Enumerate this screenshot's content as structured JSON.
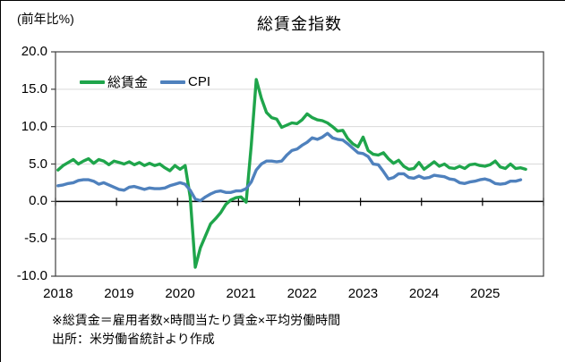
{
  "footnotes": {
    "definition": "※総賃金＝雇用者数×時間当たり賃金×平均労働時間",
    "source": "出所：米労働省統計より作成"
  },
  "chart_data": {
    "type": "line",
    "title": "総賃金指数",
    "y_axis_unit": "(前年比%)",
    "xlabel": "",
    "ylabel": "前年比%",
    "ylim": [
      -10,
      20
    ],
    "grid": true,
    "legend_position": "top-left-inside",
    "y_tick_labels": [
      "20.0",
      "15.0",
      "10.0",
      "5.0",
      "0.0",
      "-5.0",
      "-10.0"
    ],
    "x_tick_labels": [
      "2018",
      "2019",
      "2020",
      "2021",
      "2022",
      "2023",
      "2024",
      "2025"
    ],
    "x_frequency": "monthly",
    "x_slots": 96,
    "axis_color": "#404040",
    "grid_color": "#d9d9d9",
    "zero_line_color": "#000000",
    "series": [
      {
        "name": "総賃金",
        "color": "#1fa54b",
        "start": "2018-01",
        "values": [
          4.2,
          4.8,
          5.2,
          5.6,
          5.0,
          5.4,
          5.7,
          5.1,
          5.6,
          5.4,
          4.9,
          5.4,
          5.2,
          5.0,
          5.3,
          4.9,
          5.2,
          4.8,
          5.1,
          4.8,
          5.0,
          4.5,
          4.1,
          4.8,
          4.3,
          4.8,
          0.6,
          -8.8,
          -6.2,
          -4.6,
          -3.0,
          -2.3,
          -1.5,
          -0.4,
          0.2,
          0.5,
          0.6,
          -0.1,
          7.5,
          16.3,
          13.8,
          11.9,
          11.2,
          11.0,
          9.9,
          10.2,
          10.5,
          10.4,
          10.9,
          11.7,
          11.2,
          10.9,
          10.8,
          10.5,
          10.0,
          9.4,
          9.5,
          8.4,
          7.7,
          7.3,
          8.6,
          6.8,
          6.3,
          6.2,
          6.5,
          5.7,
          5.1,
          5.5,
          4.7,
          4.3,
          4.4,
          5.2,
          4.3,
          4.8,
          5.3,
          4.7,
          5.0,
          4.5,
          4.4,
          4.7,
          4.4,
          4.9,
          5.0,
          4.8,
          4.7,
          4.9,
          5.4,
          4.6,
          4.4,
          5.0,
          4.4,
          4.5,
          4.3
        ]
      },
      {
        "name": "CPI",
        "color": "#4f81bd",
        "start": "2018-01",
        "values": [
          2.1,
          2.2,
          2.4,
          2.5,
          2.8,
          2.9,
          2.9,
          2.7,
          2.3,
          2.5,
          2.2,
          1.9,
          1.6,
          1.5,
          1.9,
          2.0,
          1.8,
          1.6,
          1.8,
          1.7,
          1.7,
          1.8,
          2.1,
          2.3,
          2.5,
          2.3,
          1.5,
          0.3,
          0.1,
          0.6,
          1.0,
          1.3,
          1.4,
          1.2,
          1.2,
          1.4,
          1.4,
          1.7,
          2.6,
          4.2,
          5.0,
          5.4,
          5.4,
          5.3,
          5.4,
          6.2,
          6.8,
          7.0,
          7.5,
          7.9,
          8.5,
          8.3,
          8.6,
          9.1,
          8.5,
          8.3,
          8.2,
          7.7,
          7.1,
          6.5,
          6.4,
          6.0,
          5.0,
          4.9,
          4.0,
          3.0,
          3.2,
          3.7,
          3.7,
          3.2,
          3.1,
          3.4,
          3.1,
          3.2,
          3.5,
          3.4,
          3.3,
          3.0,
          2.9,
          2.5,
          2.4,
          2.6,
          2.7,
          2.9,
          3.0,
          2.8,
          2.4,
          2.3,
          2.4,
          2.7,
          2.7,
          2.9
        ]
      }
    ]
  }
}
